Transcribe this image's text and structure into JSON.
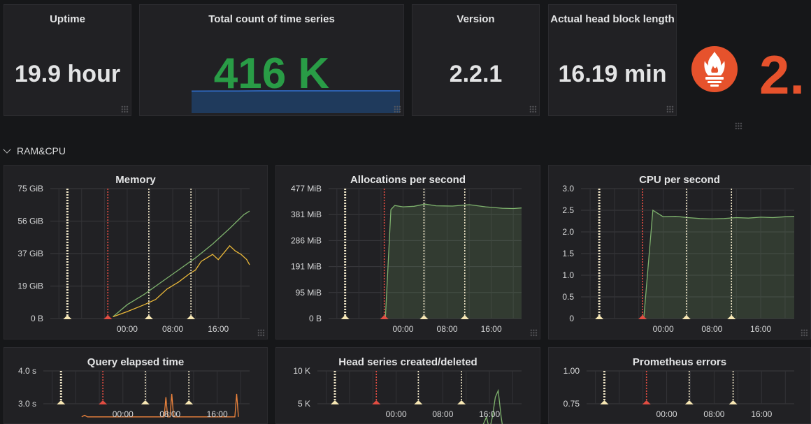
{
  "stats": {
    "uptime": {
      "title": "Uptime",
      "value": "19.9 hour"
    },
    "total_series": {
      "title": "Total count of time series",
      "value": "416 K",
      "sparkline": [
        0.98,
        0.99,
        0.99,
        1.0,
        1.0,
        1.0,
        1.0,
        1.0,
        1.0,
        1.0
      ]
    },
    "version": {
      "title": "Version",
      "value": "2.2.1"
    },
    "head_block": {
      "title": "Actual head block length",
      "value": "16.19 min"
    }
  },
  "logo": {
    "text": "2."
  },
  "row": {
    "label": "RAM&CPU"
  },
  "colors": {
    "green": "#7eb26d",
    "yellow": "#eab839",
    "orange": "#ef843c",
    "stat_green": "#299c46",
    "logo": "#e6522c"
  },
  "x_ticks": [
    "00:00",
    "08:00",
    "16:00"
  ],
  "annotation_times": [
    -10.5,
    -3.4,
    3.8,
    11.2
  ],
  "charts": {
    "memory": {
      "title": "Memory",
      "y_ticks": [
        "75 GiB",
        "56 GiB",
        "37 GiB",
        "19 GiB",
        "0 B"
      ],
      "chart_data": {
        "type": "line",
        "ylim": [
          0,
          75
        ],
        "series": [
          {
            "color": "#7eb26d",
            "values": [
              [
                -2.5,
                1
              ],
              [
                0,
                8
              ],
              [
                3,
                14
              ],
              [
                6,
                21
              ],
              [
                9,
                28
              ],
              [
                12,
                35
              ],
              [
                15,
                43
              ],
              [
                18,
                52
              ],
              [
                20.5,
                60
              ],
              [
                21.5,
                62
              ]
            ]
          },
          {
            "color": "#eab839",
            "values": [
              [
                -2.5,
                1
              ],
              [
                0,
                4
              ],
              [
                3,
                8
              ],
              [
                5,
                11
              ],
              [
                7,
                17
              ],
              [
                9,
                21
              ],
              [
                11,
                26
              ],
              [
                12,
                28
              ],
              [
                13,
                33
              ],
              [
                14,
                35
              ],
              [
                15,
                37
              ],
              [
                16,
                34
              ],
              [
                17,
                38
              ],
              [
                18,
                42
              ],
              [
                19,
                39
              ],
              [
                20,
                37
              ],
              [
                21,
                34
              ],
              [
                21.5,
                31
              ]
            ]
          }
        ]
      }
    },
    "allocations": {
      "title": "Allocations per second",
      "y_ticks": [
        "477 MiB",
        "381 MiB",
        "286 MiB",
        "191 MiB",
        "95 MiB",
        "0 B"
      ],
      "chart_data": {
        "type": "area",
        "ylim": [
          0,
          477
        ],
        "series": [
          {
            "color": "#7eb26d",
            "values": [
              [
                -3.2,
                0
              ],
              [
                -2.2,
                400
              ],
              [
                -1.5,
                415
              ],
              [
                0,
                410
              ],
              [
                2,
                412
              ],
              [
                4,
                420
              ],
              [
                6,
                414
              ],
              [
                9,
                413
              ],
              [
                12,
                418
              ],
              [
                15,
                410
              ],
              [
                18,
                405
              ],
              [
                20,
                404
              ],
              [
                21.5,
                406
              ]
            ]
          }
        ]
      }
    },
    "cpu": {
      "title": "CPU per second",
      "y_ticks": [
        "3.0",
        "2.5",
        "2.0",
        "1.5",
        "1.0",
        "0.5",
        "0"
      ],
      "chart_data": {
        "type": "area",
        "ylim": [
          0,
          3
        ],
        "series": [
          {
            "color": "#7eb26d",
            "values": [
              [
                -3.2,
                0
              ],
              [
                -1.7,
                2.5
              ],
              [
                0,
                2.35
              ],
              [
                2,
                2.36
              ],
              [
                4,
                2.33
              ],
              [
                6,
                2.31
              ],
              [
                8,
                2.3
              ],
              [
                10,
                2.31
              ],
              [
                12,
                2.33
              ],
              [
                14,
                2.32
              ],
              [
                16,
                2.34
              ],
              [
                18,
                2.33
              ],
              [
                20,
                2.35
              ],
              [
                21.5,
                2.36
              ]
            ]
          }
        ]
      }
    },
    "query": {
      "title": "Query elapsed time",
      "y_ticks": [
        "4.0 s",
        "3.0 s"
      ],
      "chart_data": {
        "type": "line",
        "ylim": [
          2.6,
          4.2
        ],
        "series": [
          {
            "color": "#ef843c",
            "values": [
              [
                -7,
                2.6
              ],
              [
                -6.5,
                2.65
              ],
              [
                -6,
                2.6
              ],
              [
                7,
                2.6
              ],
              [
                7.3,
                3.2
              ],
              [
                7.6,
                2.6
              ],
              [
                8,
                2.6
              ],
              [
                8.3,
                3.3
              ],
              [
                8.6,
                2.6
              ],
              [
                19,
                2.6
              ],
              [
                19.3,
                3.3
              ],
              [
                19.6,
                2.6
              ]
            ]
          }
        ]
      }
    },
    "head_series": {
      "title": "Head series created/deleted",
      "y_ticks": [
        "10 K",
        "5 K"
      ],
      "chart_data": {
        "type": "line",
        "ylim": [
          0,
          10
        ],
        "series": [
          {
            "color": "#7eb26d",
            "values": [
              [
                14,
                0
              ],
              [
                14.5,
                1
              ],
              [
                15,
                2
              ],
              [
                15.5,
                3
              ],
              [
                16,
                1
              ],
              [
                16.5,
                3
              ],
              [
                17,
                6
              ],
              [
                17.5,
                7
              ],
              [
                18,
                3
              ],
              [
                18.5,
                0
              ]
            ]
          }
        ]
      }
    },
    "errors": {
      "title": "Prometheus errors",
      "y_ticks": [
        "1.00",
        "0.75"
      ]
    }
  }
}
